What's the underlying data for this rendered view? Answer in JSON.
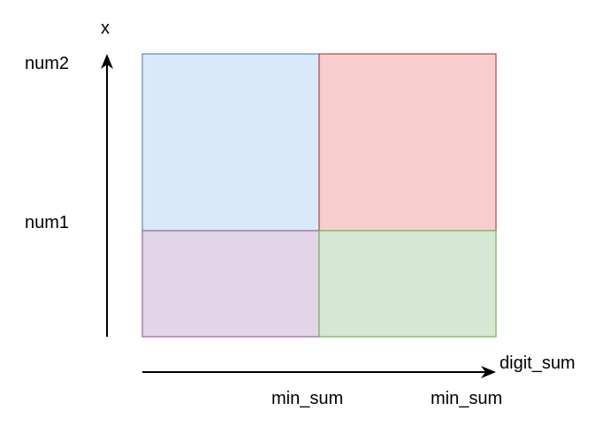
{
  "labels": {
    "y_axis": "x",
    "y_tick_top": "num2",
    "y_tick_mid": "num1",
    "x_axis": "digit_sum",
    "x_tick_1": "min_sum",
    "x_tick_2": "min_sum"
  },
  "regions": {
    "top_left": {
      "fill": "#dae8fc",
      "stroke": "#6c8ebf"
    },
    "top_right": {
      "fill": "#f8cecc",
      "stroke": "#b85450"
    },
    "bottom_left": {
      "fill": "#e1d5e7",
      "stroke": "#9673a6"
    },
    "bottom_right": {
      "fill": "#d5e8d4",
      "stroke": "#82b366"
    }
  },
  "axis_color": "#000000"
}
